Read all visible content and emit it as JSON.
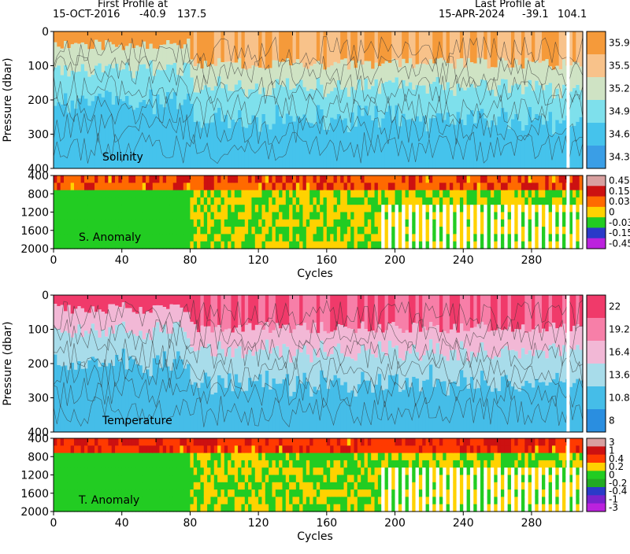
{
  "header": {
    "first_label": "First Profile at",
    "first_date": "15-OCT-2016",
    "first_lat": "-40.9",
    "first_lon": "137.5",
    "last_label": "Last Profile at",
    "last_date": "15-APR-2024",
    "last_lat": "-39.1",
    "last_lon": "104.1"
  },
  "chart_data": [
    {
      "type": "heatmap",
      "name": "Solinity",
      "xlabel": "",
      "ylabel": "Pressure (dbar)",
      "xlim": [
        0,
        310
      ],
      "ylim": [
        400,
        0
      ],
      "yticks": [
        "0",
        "100",
        "200",
        "300",
        "400"
      ],
      "colorbar": [
        "35.9",
        "35.58",
        "35.26",
        "34.94",
        "34.62",
        "34.3"
      ],
      "colors": [
        "#f59a3a",
        "#f8c28a",
        "#cfe3c4",
        "#7ee0ec",
        "#45c3ec",
        "#3a9ee6"
      ]
    },
    {
      "type": "heatmap",
      "name": "S. Anomaly",
      "xlabel": "Cycles",
      "xticks": [
        "0",
        "40",
        "80",
        "120",
        "160",
        "200",
        "240",
        "280"
      ],
      "ylim": [
        2000,
        400
      ],
      "yticks": [
        "400",
        "800",
        "1200",
        "1600",
        "2000"
      ],
      "colorbar": [
        "0.45",
        "0.15",
        "0.03",
        "0",
        "-0.03",
        "-0.15",
        "-0.45"
      ],
      "colors": [
        "#d8a0a0",
        "#cc1111",
        "#ff6a00",
        "#ffd200",
        "#22cc22",
        "#2a3ac8",
        "#bb22dd"
      ]
    },
    {
      "type": "heatmap",
      "name": "Temperature",
      "xlabel": "",
      "ylabel": "Pressure (dbar)",
      "xlim": [
        0,
        310
      ],
      "ylim": [
        400,
        0
      ],
      "yticks": [
        "0",
        "100",
        "200",
        "300",
        "400"
      ],
      "colorbar": [
        "22",
        "19.2",
        "16.4",
        "13.6",
        "10.8",
        "8"
      ],
      "colors": [
        "#f03a6a",
        "#f77fa8",
        "#f2b8d6",
        "#a8dcea",
        "#45bde8",
        "#2a8ee0"
      ]
    },
    {
      "type": "heatmap",
      "name": "T. Anomaly",
      "xlabel": "Cycles",
      "xticks": [
        "0",
        "40",
        "80",
        "120",
        "160",
        "200",
        "240",
        "280"
      ],
      "ylim": [
        2000,
        400
      ],
      "yticks": [
        "400",
        "800",
        "1200",
        "1600",
        "2000"
      ],
      "colorbar": [
        "3",
        "1",
        "0.4",
        "0.2",
        "0",
        "-0.2",
        "-0.4",
        "-1",
        "-3"
      ],
      "colors": [
        "#d8a0a0",
        "#cc1111",
        "#ff3a00",
        "#ffd200",
        "#22cc22",
        "#22aa22",
        "#2a3ac8",
        "#7a22cc",
        "#bb22dd"
      ]
    }
  ]
}
